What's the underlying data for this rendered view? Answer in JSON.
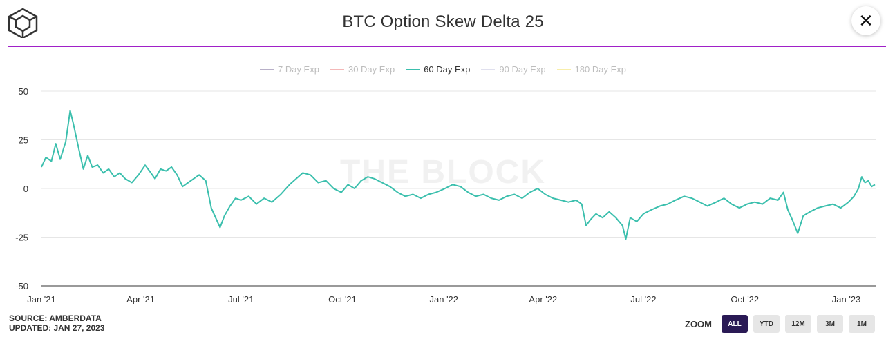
{
  "header": {
    "title": "BTC Option Skew Delta 25",
    "logo_icon": "cube-logo-icon",
    "close_icon": "close-icon",
    "close_glyph": "✕"
  },
  "legend": [
    {
      "label": "7 Day Exp",
      "color": "#b8b0c8",
      "active": false
    },
    {
      "label": "30 Day Exp",
      "color": "#f4b8b8",
      "active": false
    },
    {
      "label": "60 Day Exp",
      "color": "#3bbfad",
      "active": true
    },
    {
      "label": "90 Day Exp",
      "color": "#e0e0ee",
      "active": false
    },
    {
      "label": "180 Day Exp",
      "color": "#f8eeaa",
      "active": false
    }
  ],
  "watermark": "THE BLOCK",
  "footer": {
    "source_prefix": "SOURCE: ",
    "source_name": "AMBERDATA",
    "updated": "UPDATED: JAN 27, 2023"
  },
  "zoom": {
    "label": "ZOOM",
    "buttons": [
      {
        "label": "ALL",
        "active": true
      },
      {
        "label": "YTD",
        "active": false
      },
      {
        "label": "12M",
        "active": false
      },
      {
        "label": "3M",
        "active": false
      },
      {
        "label": "1M",
        "active": false
      }
    ]
  },
  "chart_data": {
    "type": "line",
    "title": "BTC Option Skew Delta 25",
    "ylim": [
      -50,
      50
    ],
    "yticks": [
      50,
      25,
      0,
      -25,
      -50
    ],
    "xlim": [
      "2021-01-01",
      "2023-01-27"
    ],
    "xticks": [
      {
        "label": "Jan '21",
        "date": "2021-01-01"
      },
      {
        "label": "Apr '21",
        "date": "2021-04-01"
      },
      {
        "label": "Jul '21",
        "date": "2021-07-01"
      },
      {
        "label": "Oct '21",
        "date": "2021-10-01"
      },
      {
        "label": "Jan '22",
        "date": "2022-01-01"
      },
      {
        "label": "Apr '22",
        "date": "2022-04-01"
      },
      {
        "label": "Jul '22",
        "date": "2022-07-01"
      },
      {
        "label": "Oct '22",
        "date": "2022-10-01"
      },
      {
        "label": "Jan '23",
        "date": "2023-01-01"
      }
    ],
    "grid": true,
    "legend_position": "top-center",
    "series": [
      {
        "name": "60 Day Exp",
        "color": "#3bbfad",
        "points": [
          [
            "2021-01-01",
            11
          ],
          [
            "2021-01-05",
            16
          ],
          [
            "2021-01-10",
            14
          ],
          [
            "2021-01-14",
            23
          ],
          [
            "2021-01-18",
            15
          ],
          [
            "2021-01-23",
            24
          ],
          [
            "2021-01-27",
            40
          ],
          [
            "2021-01-30",
            33
          ],
          [
            "2021-02-04",
            20
          ],
          [
            "2021-02-08",
            10
          ],
          [
            "2021-02-12",
            17
          ],
          [
            "2021-02-16",
            11
          ],
          [
            "2021-02-21",
            12
          ],
          [
            "2021-02-26",
            8
          ],
          [
            "2021-03-03",
            10
          ],
          [
            "2021-03-08",
            6
          ],
          [
            "2021-03-13",
            8
          ],
          [
            "2021-03-18",
            5
          ],
          [
            "2021-03-24",
            3
          ],
          [
            "2021-03-30",
            7
          ],
          [
            "2021-04-05",
            12
          ],
          [
            "2021-04-09",
            9
          ],
          [
            "2021-04-14",
            5
          ],
          [
            "2021-04-19",
            10
          ],
          [
            "2021-04-24",
            9
          ],
          [
            "2021-04-29",
            11
          ],
          [
            "2021-05-04",
            7
          ],
          [
            "2021-05-09",
            1
          ],
          [
            "2021-05-14",
            3
          ],
          [
            "2021-05-19",
            5
          ],
          [
            "2021-05-24",
            7
          ],
          [
            "2021-05-30",
            4
          ],
          [
            "2021-06-04",
            -10
          ],
          [
            "2021-06-08",
            -15
          ],
          [
            "2021-06-12",
            -20
          ],
          [
            "2021-06-16",
            -14
          ],
          [
            "2021-06-21",
            -9
          ],
          [
            "2021-06-26",
            -5
          ],
          [
            "2021-07-01",
            -6
          ],
          [
            "2021-07-08",
            -4
          ],
          [
            "2021-07-15",
            -8
          ],
          [
            "2021-07-22",
            -5
          ],
          [
            "2021-07-29",
            -7
          ],
          [
            "2021-08-06",
            -3
          ],
          [
            "2021-08-14",
            2
          ],
          [
            "2021-08-20",
            5
          ],
          [
            "2021-08-26",
            8
          ],
          [
            "2021-09-02",
            7
          ],
          [
            "2021-09-09",
            3
          ],
          [
            "2021-09-16",
            4
          ],
          [
            "2021-09-23",
            0
          ],
          [
            "2021-09-30",
            -2
          ],
          [
            "2021-10-06",
            2
          ],
          [
            "2021-10-12",
            0
          ],
          [
            "2021-10-18",
            4
          ],
          [
            "2021-10-24",
            6
          ],
          [
            "2021-10-30",
            5
          ],
          [
            "2021-11-06",
            3
          ],
          [
            "2021-11-13",
            1
          ],
          [
            "2021-11-20",
            -2
          ],
          [
            "2021-11-27",
            -4
          ],
          [
            "2021-12-04",
            -3
          ],
          [
            "2021-12-11",
            -5
          ],
          [
            "2021-12-18",
            -3
          ],
          [
            "2021-12-25",
            -2
          ],
          [
            "2022-01-02",
            0
          ],
          [
            "2022-01-09",
            2
          ],
          [
            "2022-01-16",
            1
          ],
          [
            "2022-01-23",
            -2
          ],
          [
            "2022-01-30",
            -4
          ],
          [
            "2022-02-06",
            -3
          ],
          [
            "2022-02-13",
            -5
          ],
          [
            "2022-02-20",
            -6
          ],
          [
            "2022-02-27",
            -4
          ],
          [
            "2022-03-06",
            -3
          ],
          [
            "2022-03-13",
            -5
          ],
          [
            "2022-03-20",
            -2
          ],
          [
            "2022-03-27",
            0
          ],
          [
            "2022-04-03",
            -3
          ],
          [
            "2022-04-10",
            -5
          ],
          [
            "2022-04-17",
            -6
          ],
          [
            "2022-04-24",
            -7
          ],
          [
            "2022-05-01",
            -6
          ],
          [
            "2022-05-06",
            -8
          ],
          [
            "2022-05-10",
            -19
          ],
          [
            "2022-05-14",
            -16
          ],
          [
            "2022-05-19",
            -13
          ],
          [
            "2022-05-25",
            -15
          ],
          [
            "2022-05-31",
            -12
          ],
          [
            "2022-06-06",
            -15
          ],
          [
            "2022-06-12",
            -19
          ],
          [
            "2022-06-15",
            -26
          ],
          [
            "2022-06-19",
            -15
          ],
          [
            "2022-06-25",
            -17
          ],
          [
            "2022-07-01",
            -13
          ],
          [
            "2022-07-08",
            -11
          ],
          [
            "2022-07-16",
            -9
          ],
          [
            "2022-07-23",
            -8
          ],
          [
            "2022-07-30",
            -6
          ],
          [
            "2022-08-07",
            -4
          ],
          [
            "2022-08-14",
            -5
          ],
          [
            "2022-08-21",
            -7
          ],
          [
            "2022-08-28",
            -9
          ],
          [
            "2022-09-05",
            -7
          ],
          [
            "2022-09-12",
            -5
          ],
          [
            "2022-09-19",
            -8
          ],
          [
            "2022-09-26",
            -10
          ],
          [
            "2022-10-03",
            -8
          ],
          [
            "2022-10-10",
            -7
          ],
          [
            "2022-10-17",
            -8
          ],
          [
            "2022-10-24",
            -5
          ],
          [
            "2022-10-31",
            -6
          ],
          [
            "2022-11-05",
            -2
          ],
          [
            "2022-11-09",
            -11
          ],
          [
            "2022-11-13",
            -16
          ],
          [
            "2022-11-18",
            -23
          ],
          [
            "2022-11-23",
            -14
          ],
          [
            "2022-11-29",
            -12
          ],
          [
            "2022-12-06",
            -10
          ],
          [
            "2022-12-13",
            -9
          ],
          [
            "2022-12-20",
            -8
          ],
          [
            "2022-12-27",
            -10
          ],
          [
            "2023-01-03",
            -7
          ],
          [
            "2023-01-08",
            -4
          ],
          [
            "2023-01-12",
            0
          ],
          [
            "2023-01-15",
            6
          ],
          [
            "2023-01-18",
            3
          ],
          [
            "2023-01-21",
            4
          ],
          [
            "2023-01-24",
            1
          ],
          [
            "2023-01-27",
            2
          ]
        ]
      }
    ]
  }
}
